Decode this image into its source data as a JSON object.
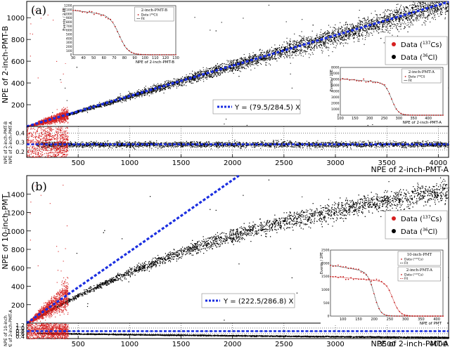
{
  "colors": {
    "data_a": "#000000",
    "data_b": "#d62020",
    "fit": "#1a2ee0",
    "inset_fit": "#e01020"
  },
  "chart_data": [
    {
      "id": "a",
      "type": "scatter",
      "panel_label": "(a)",
      "xlabel": "NPE of 2-inch-PMT-A",
      "ylabel": "NPE of 2-inch-PMT-B",
      "ratio_ylabel": "NPE of 2-inch-PMT-B\nNPE of 2-inch-PMT-A",
      "xlim": [
        0,
        4100
      ],
      "ylim": [
        0,
        1150
      ],
      "xticks": [
        500,
        1000,
        1500,
        2000,
        2500,
        3000,
        3500,
        4000
      ],
      "yticks": [
        200,
        400,
        600,
        800,
        1000
      ],
      "ratio_ylim": [
        0.14,
        0.47
      ],
      "ratio_yticks": [
        0.2,
        0.3,
        0.4
      ],
      "ratio_ref_lines": [
        0.22,
        0.28,
        0.4
      ],
      "series": [
        {
          "name": "Data (137Cs)",
          "label_main": "Data (",
          "label_sup": "137",
          "label_rest": "Cs)",
          "color": "#d62020",
          "x_range": [
            0,
            400
          ],
          "model": "linear",
          "slope": 0.279,
          "ratio_center": 0.28,
          "ratio_spread": 0.1
        },
        {
          "name": "Data (36Cl)",
          "label_main": "Data (",
          "label_sup": "36",
          "label_rest": "Cl)",
          "color": "#000000",
          "x_range": [
            100,
            4100
          ],
          "model": "linear",
          "slope": 0.279,
          "ratio_center": 0.28,
          "ratio_spread": 0.015
        }
      ],
      "fit": {
        "label": "Y = (79.5/284.5) X",
        "slope": 0.2794,
        "ratio": 0.2794
      },
      "insets": [
        {
          "id": "a1",
          "title": "2-inch-PMT-B",
          "xlabel": "NPE of 2-inch-PMT-B",
          "ylabel": "Events / 2 PE",
          "xlim": [
            30,
            130
          ],
          "ylim": [
            0,
            1200
          ],
          "xticks": [
            30,
            40,
            50,
            60,
            70,
            80,
            90,
            100,
            110,
            120,
            130
          ],
          "yticks": [
            0,
            100,
            200,
            300,
            400,
            500,
            600,
            700,
            800,
            900,
            1000,
            1100,
            1200
          ],
          "legend_data": "Data (",
          "legend_sup": "36",
          "legend_rest": "Cl)",
          "legend_fit": "Fit",
          "profile": {
            "plateau": 950,
            "edge": 75,
            "width": 8,
            "slope": 3
          }
        },
        {
          "id": "a2",
          "title": "2-inch-PMT-A",
          "xlabel": "NPE of 2-inch-PMT-A",
          "ylabel": "Events / 2PE",
          "xlim": [
            100,
            450
          ],
          "ylim": [
            0,
            8000
          ],
          "xticks": [
            100,
            150,
            200,
            250,
            300,
            350,
            400
          ],
          "yticks": [
            0,
            1000,
            2000,
            3000,
            4000,
            5000,
            6000,
            7000,
            8000
          ],
          "legend_data": "Data (",
          "legend_sup": "36",
          "legend_rest": "Cl)",
          "legend_fit": "Fit",
          "profile": {
            "plateau": 5400,
            "edge": 275,
            "width": 20,
            "slope": 4
          }
        }
      ]
    },
    {
      "id": "b",
      "type": "scatter",
      "panel_label": "(b)",
      "xlabel": "NPE of 2-inch-PMT-A",
      "ylabel": "NPE of 10-inch-PMT",
      "ratio_ylabel": "NPE of 10-inch\nNPE of 2-inch-PMT-A",
      "xlim": [
        0,
        4100
      ],
      "ylim": [
        0,
        1600
      ],
      "xticks": [
        500,
        1000,
        1500,
        2000,
        2500,
        3000,
        3500,
        4000
      ],
      "yticks": [
        200,
        400,
        600,
        800,
        1000,
        1200,
        1400
      ],
      "ratio_ylim": [
        0.25,
        1.35
      ],
      "ratio_yticks": [
        0.4,
        0.6,
        0.8,
        1.0,
        1.2
      ],
      "ratio_ref_lines": [
        0.6,
        0.78,
        1.0
      ],
      "series": [
        {
          "name": "Data (137Cs)",
          "label_main": "Data (",
          "label_sup": "137",
          "label_rest": "Cs)",
          "color": "#d62020",
          "x_range": [
            0,
            400
          ],
          "model": "linear",
          "slope": 0.78,
          "ratio_center": 0.78,
          "ratio_spread": 0.25
        },
        {
          "name": "Data (36Cl)",
          "label_main": "Data (",
          "label_sup": "36",
          "label_rest": "Cl)",
          "color": "#000000",
          "x_range": [
            100,
            4100
          ],
          "model": "saturating",
          "slope": 0.78,
          "ratio_center": 0.6,
          "ratio_spread": 0.02
        }
      ],
      "fit": {
        "label": "Y = (222.5/286.8) X",
        "slope": 0.7758,
        "ratio": 0.7758
      },
      "insets": [
        {
          "id": "b1",
          "title": "10-inch-PMT",
          "title2": "2-inch-PMT-A",
          "xlabel": "NPE of PMT",
          "ylabel": "Events / 2PE",
          "xlim": [
            60,
            420
          ],
          "ylim": [
            0,
            2500
          ],
          "xticks": [
            100,
            150,
            200,
            250,
            300,
            350,
            400
          ],
          "yticks": [
            0,
            500,
            1000,
            1500,
            2000,
            2500
          ],
          "legend_data": "Data (",
          "legend_sup": "137",
          "legend_rest": "Cs)",
          "legend_fit": "Fit",
          "legend2_data": "Data (",
          "legend2_sup": "137",
          "legend2_rest": "Cs)",
          "legend2_fit": "Fit",
          "profile": {
            "plateau": 1650,
            "edge": 200,
            "width": 18,
            "slope": 2
          },
          "profile2": {
            "plateau": 1300,
            "edge": 260,
            "width": 20,
            "slope": 1
          }
        }
      ]
    }
  ]
}
